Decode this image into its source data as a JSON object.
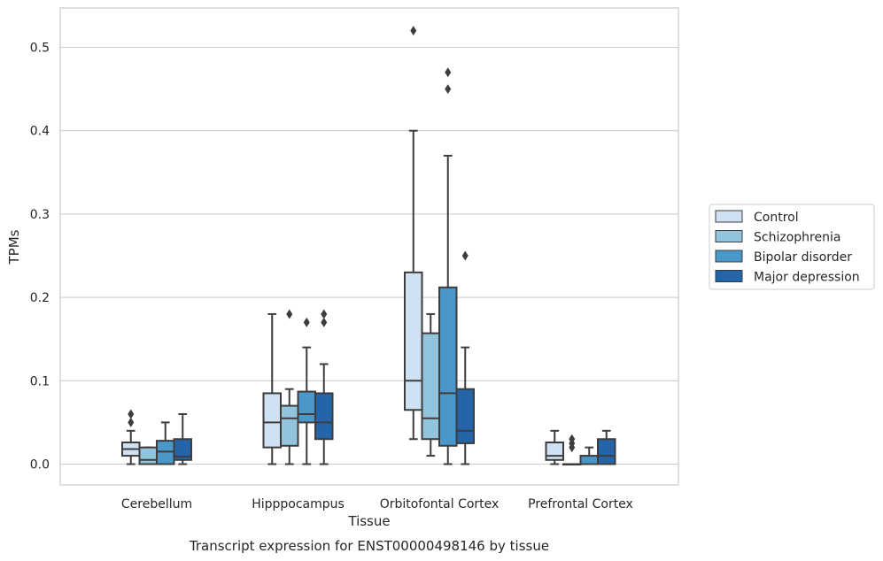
{
  "chart_data": {
    "type": "box",
    "caption": "Transcript expression for ENST00000498146 by tissue",
    "xlabel": "Tissue",
    "ylabel": "TPMs",
    "ylim": [
      -0.025,
      0.548
    ],
    "yticks": [
      0.0,
      0.1,
      0.2,
      0.3,
      0.4,
      0.5
    ],
    "ytick_labels": [
      "0.0",
      "0.1",
      "0.2",
      "0.3",
      "0.4",
      "0.5"
    ],
    "grid": "horizontal",
    "legend_position": "right",
    "categories": [
      "Cerebellum",
      "Hipppocampus",
      "Orbitofontal Cortex",
      "Prefrontal Cortex"
    ],
    "series": [
      {
        "name": "Control",
        "color": "#cfe1f2",
        "boxes": [
          {
            "whislo": 0.0,
            "q1": 0.01,
            "median": 0.018,
            "q3": 0.026,
            "whishi": 0.04,
            "fliers": [
              0.05,
              0.06
            ]
          },
          {
            "whislo": 0.0,
            "q1": 0.02,
            "median": 0.05,
            "q3": 0.085,
            "whishi": 0.18,
            "fliers": []
          },
          {
            "whislo": 0.03,
            "q1": 0.065,
            "median": 0.1,
            "q3": 0.23,
            "whishi": 0.4,
            "fliers": [
              0.52
            ]
          },
          {
            "whislo": 0.0,
            "q1": 0.005,
            "median": 0.01,
            "q3": 0.026,
            "whishi": 0.04,
            "fliers": []
          }
        ]
      },
      {
        "name": "Schizophrenia",
        "color": "#93c4de",
        "boxes": [
          {
            "whislo": 0.0,
            "q1": 0.0,
            "median": 0.005,
            "q3": 0.02,
            "whishi": 0.02,
            "fliers": []
          },
          {
            "whislo": 0.0,
            "q1": 0.022,
            "median": 0.055,
            "q3": 0.07,
            "whishi": 0.09,
            "fliers": [
              0.18
            ]
          },
          {
            "whislo": 0.01,
            "q1": 0.03,
            "median": 0.055,
            "q3": 0.157,
            "whishi": 0.18,
            "fliers": []
          },
          {
            "whislo": 0.0,
            "q1": 0.0,
            "median": 0.0,
            "q3": 0.0,
            "whishi": 0.0,
            "fliers": [
              0.02,
              0.025,
              0.03
            ]
          }
        ]
      },
      {
        "name": "Bipolar disorder",
        "color": "#4a98c9",
        "boxes": [
          {
            "whislo": 0.0,
            "q1": 0.0,
            "median": 0.015,
            "q3": 0.028,
            "whishi": 0.05,
            "fliers": []
          },
          {
            "whislo": 0.0,
            "q1": 0.05,
            "median": 0.06,
            "q3": 0.087,
            "whishi": 0.14,
            "fliers": [
              0.17
            ]
          },
          {
            "whislo": 0.0,
            "q1": 0.022,
            "median": 0.085,
            "q3": 0.212,
            "whishi": 0.37,
            "fliers": [
              0.45,
              0.47
            ]
          },
          {
            "whislo": 0.0,
            "q1": 0.0,
            "median": 0.0,
            "q3": 0.01,
            "whishi": 0.02,
            "fliers": []
          }
        ]
      },
      {
        "name": "Major depression",
        "color": "#2464a9",
        "boxes": [
          {
            "whislo": 0.0,
            "q1": 0.005,
            "median": 0.009,
            "q3": 0.03,
            "whishi": 0.06,
            "fliers": []
          },
          {
            "whislo": 0.0,
            "q1": 0.03,
            "median": 0.05,
            "q3": 0.085,
            "whishi": 0.12,
            "fliers": [
              0.17,
              0.18
            ]
          },
          {
            "whislo": 0.0,
            "q1": 0.025,
            "median": 0.04,
            "q3": 0.09,
            "whishi": 0.14,
            "fliers": [
              0.25
            ]
          },
          {
            "whislo": 0.0,
            "q1": 0.0,
            "median": 0.01,
            "q3": 0.03,
            "whishi": 0.04,
            "fliers": []
          }
        ]
      }
    ]
  }
}
